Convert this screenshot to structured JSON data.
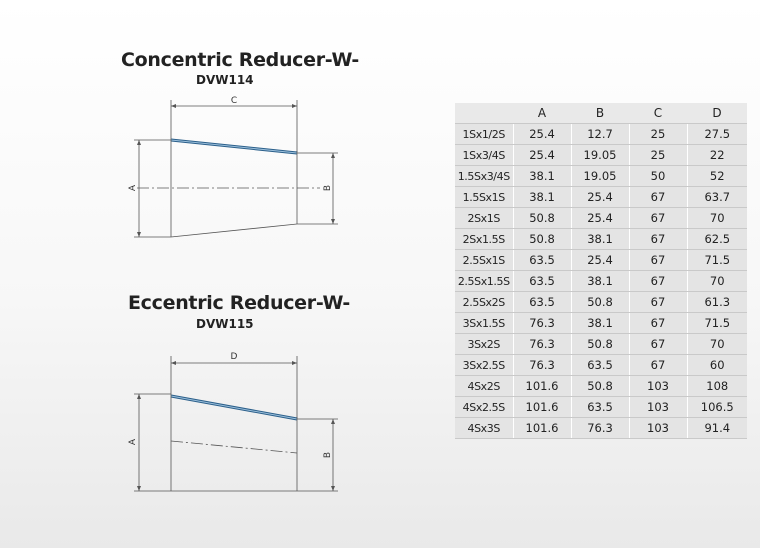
{
  "concentric": {
    "title": "Concentric Reducer-W-",
    "code": "DVW114",
    "dims": {
      "length": "C",
      "large": "A",
      "small": "B"
    }
  },
  "eccentric": {
    "title": "Eccentric Reducer-W-",
    "code": "DVW115",
    "dims": {
      "length": "D",
      "large": "A",
      "small": "B"
    }
  },
  "table": {
    "headers": [
      "",
      "A",
      "B",
      "C",
      "D"
    ],
    "rows": [
      [
        "1Sx1/2S",
        "25.4",
        "12.7",
        "25",
        "27.5"
      ],
      [
        "1Sx3/4S",
        "25.4",
        "19.05",
        "25",
        "22"
      ],
      [
        "1.5Sx3/4S",
        "38.1",
        "19.05",
        "50",
        "52"
      ],
      [
        "1.5Sx1S",
        "38.1",
        "25.4",
        "67",
        "63.7"
      ],
      [
        "2Sx1S",
        "50.8",
        "25.4",
        "67",
        "70"
      ],
      [
        "2Sx1.5S",
        "50.8",
        "38.1",
        "67",
        "62.5"
      ],
      [
        "2.5Sx1S",
        "63.5",
        "25.4",
        "67",
        "71.5"
      ],
      [
        "2.5Sx1.5S",
        "63.5",
        "38.1",
        "67",
        "70"
      ],
      [
        "2.5Sx2S",
        "63.5",
        "50.8",
        "67",
        "61.3"
      ],
      [
        "3Sx1.5S",
        "76.3",
        "38.1",
        "67",
        "71.5"
      ],
      [
        "3Sx2S",
        "76.3",
        "50.8",
        "67",
        "70"
      ],
      [
        "3Sx2.5S",
        "76.3",
        "63.5",
        "67",
        "60"
      ],
      [
        "4Sx2S",
        "101.6",
        "50.8",
        "103",
        "108"
      ],
      [
        "4Sx2.5S",
        "101.6",
        "63.5",
        "103",
        "106.5"
      ],
      [
        "4Sx3S",
        "101.6",
        "76.3",
        "103",
        "91.4"
      ]
    ]
  }
}
